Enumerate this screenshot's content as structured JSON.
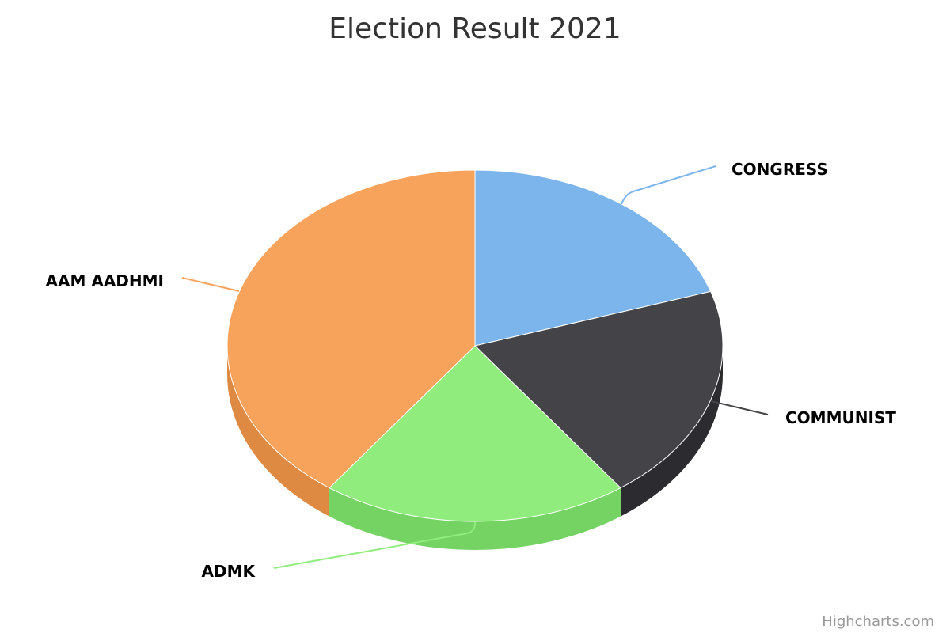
{
  "chart_data": {
    "type": "pie",
    "title": "Election Result 2021",
    "slices": [
      {
        "name": "CONGRESS",
        "value": 20,
        "color": "#7cb5ec",
        "side_color": "#5f98cf"
      },
      {
        "name": "COMMUNIST",
        "value": 20,
        "color": "#434348",
        "side_color": "#2b2b30"
      },
      {
        "name": "ADMK",
        "value": 20,
        "color": "#90ed7d",
        "side_color": "#75d363"
      },
      {
        "name": "AAM AADHMI",
        "value": 40,
        "color": "#f7a35c",
        "side_color": "#de8a43"
      }
    ],
    "style": "3d"
  },
  "credits": "Highcharts.com"
}
